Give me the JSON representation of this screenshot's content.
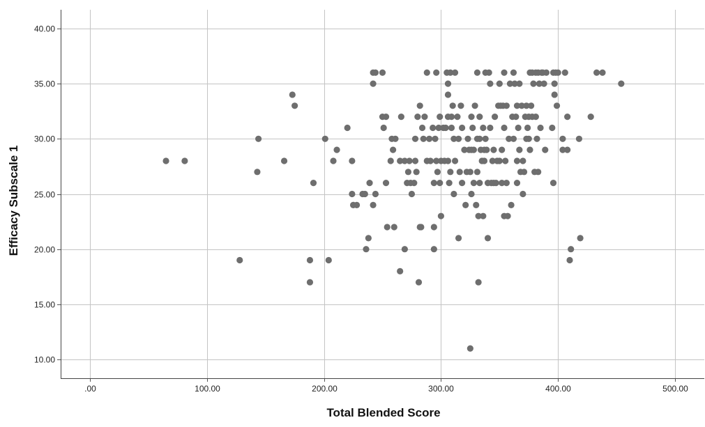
{
  "chart_data": {
    "type": "scatter",
    "title": "",
    "xlabel": "Total Blended Score",
    "ylabel": "Efficacy Subscale 1",
    "xlim": [
      -25,
      525
    ],
    "ylim": [
      8.3,
      41.7
    ],
    "x_ticks": [
      0,
      100,
      200,
      300,
      400,
      500
    ],
    "x_tick_labels": [
      ".00",
      "100.00",
      "200.00",
      "300.00",
      "400.00",
      "500.00"
    ],
    "y_ticks": [
      10,
      15,
      20,
      25,
      30,
      35,
      40
    ],
    "y_tick_labels": [
      "10.00",
      "15.00",
      "20.00",
      "25.00",
      "30.00",
      "35.00",
      "40.00"
    ],
    "grid": true,
    "marker_color": "#6e6e6e",
    "grid_color": "#c4c4c4",
    "points": [
      {
        "x": 65,
        "y": 28
      },
      {
        "x": 81,
        "y": 28
      },
      {
        "x": 128,
        "y": 19
      },
      {
        "x": 143,
        "y": 27
      },
      {
        "x": 144,
        "y": 30
      },
      {
        "x": 166,
        "y": 28
      },
      {
        "x": 173,
        "y": 34
      },
      {
        "x": 175,
        "y": 33
      },
      {
        "x": 188,
        "y": 19
      },
      {
        "x": 188,
        "y": 17
      },
      {
        "x": 191,
        "y": 26
      },
      {
        "x": 201,
        "y": 30
      },
      {
        "x": 204,
        "y": 19
      },
      {
        "x": 208,
        "y": 28
      },
      {
        "x": 211,
        "y": 29
      },
      {
        "x": 220,
        "y": 31
      },
      {
        "x": 224,
        "y": 28
      },
      {
        "x": 224,
        "y": 25
      },
      {
        "x": 225,
        "y": 24
      },
      {
        "x": 228,
        "y": 24
      },
      {
        "x": 233,
        "y": 25
      },
      {
        "x": 235,
        "y": 25
      },
      {
        "x": 236,
        "y": 20
      },
      {
        "x": 238,
        "y": 21
      },
      {
        "x": 239,
        "y": 26
      },
      {
        "x": 242,
        "y": 24
      },
      {
        "x": 244,
        "y": 25
      },
      {
        "x": 242,
        "y": 36
      },
      {
        "x": 244,
        "y": 36
      },
      {
        "x": 250,
        "y": 36
      },
      {
        "x": 242,
        "y": 35
      },
      {
        "x": 250,
        "y": 32
      },
      {
        "x": 253,
        "y": 32
      },
      {
        "x": 251,
        "y": 31
      },
      {
        "x": 253,
        "y": 26
      },
      {
        "x": 254,
        "y": 22
      },
      {
        "x": 257,
        "y": 28
      },
      {
        "x": 258,
        "y": 30
      },
      {
        "x": 261,
        "y": 30
      },
      {
        "x": 260,
        "y": 22
      },
      {
        "x": 259,
        "y": 29
      },
      {
        "x": 265,
        "y": 18
      },
      {
        "x": 266,
        "y": 32
      },
      {
        "x": 265,
        "y": 28
      },
      {
        "x": 269,
        "y": 28
      },
      {
        "x": 269,
        "y": 20
      },
      {
        "x": 271,
        "y": 26
      },
      {
        "x": 272,
        "y": 27
      },
      {
        "x": 273,
        "y": 28
      },
      {
        "x": 274,
        "y": 26
      },
      {
        "x": 275,
        "y": 25
      },
      {
        "x": 277,
        "y": 26
      },
      {
        "x": 278,
        "y": 28
      },
      {
        "x": 278,
        "y": 30
      },
      {
        "x": 279,
        "y": 27
      },
      {
        "x": 280,
        "y": 32
      },
      {
        "x": 281,
        "y": 17
      },
      {
        "x": 282,
        "y": 22
      },
      {
        "x": 283,
        "y": 22
      },
      {
        "x": 282,
        "y": 33
      },
      {
        "x": 284,
        "y": 31
      },
      {
        "x": 285,
        "y": 30
      },
      {
        "x": 286,
        "y": 32
      },
      {
        "x": 288,
        "y": 28
      },
      {
        "x": 288,
        "y": 36
      },
      {
        "x": 290,
        "y": 30
      },
      {
        "x": 291,
        "y": 28
      },
      {
        "x": 293,
        "y": 31
      },
      {
        "x": 294,
        "y": 26
      },
      {
        "x": 294,
        "y": 22
      },
      {
        "x": 294,
        "y": 20
      },
      {
        "x": 295,
        "y": 30
      },
      {
        "x": 296,
        "y": 36
      },
      {
        "x": 296,
        "y": 28
      },
      {
        "x": 297,
        "y": 27
      },
      {
        "x": 298,
        "y": 31
      },
      {
        "x": 299,
        "y": 26
      },
      {
        "x": 299,
        "y": 32
      },
      {
        "x": 300,
        "y": 28
      },
      {
        "x": 300,
        "y": 23
      },
      {
        "x": 302,
        "y": 31
      },
      {
        "x": 303,
        "y": 28
      },
      {
        "x": 304,
        "y": 31
      },
      {
        "x": 305,
        "y": 36
      },
      {
        "x": 306,
        "y": 35
      },
      {
        "x": 306,
        "y": 34
      },
      {
        "x": 306,
        "y": 32
      },
      {
        "x": 306,
        "y": 28
      },
      {
        "x": 307,
        "y": 26
      },
      {
        "x": 308,
        "y": 36
      },
      {
        "x": 308,
        "y": 27
      },
      {
        "x": 309,
        "y": 32
      },
      {
        "x": 309,
        "y": 31
      },
      {
        "x": 310,
        "y": 33
      },
      {
        "x": 311,
        "y": 30
      },
      {
        "x": 311,
        "y": 25
      },
      {
        "x": 312,
        "y": 36
      },
      {
        "x": 312,
        "y": 28
      },
      {
        "x": 314,
        "y": 32
      },
      {
        "x": 315,
        "y": 30
      },
      {
        "x": 315,
        "y": 21
      },
      {
        "x": 316,
        "y": 27
      },
      {
        "x": 317,
        "y": 33
      },
      {
        "x": 318,
        "y": 31
      },
      {
        "x": 318,
        "y": 26
      },
      {
        "x": 320,
        "y": 29
      },
      {
        "x": 321,
        "y": 24
      },
      {
        "x": 322,
        "y": 27
      },
      {
        "x": 323,
        "y": 30
      },
      {
        "x": 324,
        "y": 29
      },
      {
        "x": 325,
        "y": 27
      },
      {
        "x": 325,
        "y": 11
      },
      {
        "x": 326,
        "y": 25
      },
      {
        "x": 326,
        "y": 32
      },
      {
        "x": 326,
        "y": 29
      },
      {
        "x": 327,
        "y": 31
      },
      {
        "x": 328,
        "y": 29
      },
      {
        "x": 328,
        "y": 26
      },
      {
        "x": 329,
        "y": 33
      },
      {
        "x": 330,
        "y": 24
      },
      {
        "x": 331,
        "y": 36
      },
      {
        "x": 331,
        "y": 27
      },
      {
        "x": 331,
        "y": 30
      },
      {
        "x": 332,
        "y": 17
      },
      {
        "x": 332,
        "y": 23
      },
      {
        "x": 333,
        "y": 32
      },
      {
        "x": 333,
        "y": 26
      },
      {
        "x": 333,
        "y": 30
      },
      {
        "x": 334,
        "y": 29
      },
      {
        "x": 335,
        "y": 28
      },
      {
        "x": 336,
        "y": 31
      },
      {
        "x": 336,
        "y": 23
      },
      {
        "x": 337,
        "y": 28
      },
      {
        "x": 337,
        "y": 29
      },
      {
        "x": 338,
        "y": 36
      },
      {
        "x": 338,
        "y": 30
      },
      {
        "x": 339,
        "y": 29
      },
      {
        "x": 340,
        "y": 26
      },
      {
        "x": 340,
        "y": 21
      },
      {
        "x": 341,
        "y": 36
      },
      {
        "x": 342,
        "y": 31
      },
      {
        "x": 342,
        "y": 35
      },
      {
        "x": 343,
        "y": 26
      },
      {
        "x": 344,
        "y": 28
      },
      {
        "x": 345,
        "y": 26
      },
      {
        "x": 345,
        "y": 29
      },
      {
        "x": 346,
        "y": 32
      },
      {
        "x": 347,
        "y": 26
      },
      {
        "x": 348,
        "y": 28
      },
      {
        "x": 349,
        "y": 33
      },
      {
        "x": 350,
        "y": 28
      },
      {
        "x": 350,
        "y": 35
      },
      {
        "x": 351,
        "y": 33
      },
      {
        "x": 352,
        "y": 26
      },
      {
        "x": 352,
        "y": 29
      },
      {
        "x": 353,
        "y": 33
      },
      {
        "x": 354,
        "y": 23
      },
      {
        "x": 354,
        "y": 31
      },
      {
        "x": 354,
        "y": 36
      },
      {
        "x": 355,
        "y": 28
      },
      {
        "x": 356,
        "y": 26
      },
      {
        "x": 356,
        "y": 33
      },
      {
        "x": 357,
        "y": 23
      },
      {
        "x": 358,
        "y": 30
      },
      {
        "x": 359,
        "y": 35
      },
      {
        "x": 360,
        "y": 24
      },
      {
        "x": 361,
        "y": 32
      },
      {
        "x": 362,
        "y": 36
      },
      {
        "x": 362,
        "y": 30
      },
      {
        "x": 363,
        "y": 35
      },
      {
        "x": 364,
        "y": 32
      },
      {
        "x": 365,
        "y": 28
      },
      {
        "x": 365,
        "y": 26
      },
      {
        "x": 365,
        "y": 33
      },
      {
        "x": 366,
        "y": 31
      },
      {
        "x": 367,
        "y": 29
      },
      {
        "x": 367,
        "y": 35
      },
      {
        "x": 368,
        "y": 27
      },
      {
        "x": 369,
        "y": 33
      },
      {
        "x": 370,
        "y": 28
      },
      {
        "x": 370,
        "y": 25
      },
      {
        "x": 371,
        "y": 27
      },
      {
        "x": 372,
        "y": 32
      },
      {
        "x": 373,
        "y": 33
      },
      {
        "x": 373,
        "y": 30
      },
      {
        "x": 374,
        "y": 31
      },
      {
        "x": 375,
        "y": 32
      },
      {
        "x": 375,
        "y": 30
      },
      {
        "x": 376,
        "y": 36
      },
      {
        "x": 376,
        "y": 29
      },
      {
        "x": 377,
        "y": 33
      },
      {
        "x": 378,
        "y": 36
      },
      {
        "x": 378,
        "y": 32
      },
      {
        "x": 379,
        "y": 35
      },
      {
        "x": 380,
        "y": 27
      },
      {
        "x": 381,
        "y": 36
      },
      {
        "x": 381,
        "y": 32
      },
      {
        "x": 382,
        "y": 30
      },
      {
        "x": 383,
        "y": 36
      },
      {
        "x": 383,
        "y": 27
      },
      {
        "x": 384,
        "y": 35
      },
      {
        "x": 385,
        "y": 31
      },
      {
        "x": 386,
        "y": 36
      },
      {
        "x": 387,
        "y": 36
      },
      {
        "x": 388,
        "y": 35
      },
      {
        "x": 389,
        "y": 29
      },
      {
        "x": 390,
        "y": 36
      },
      {
        "x": 395,
        "y": 31
      },
      {
        "x": 396,
        "y": 36
      },
      {
        "x": 396,
        "y": 26
      },
      {
        "x": 397,
        "y": 34
      },
      {
        "x": 397,
        "y": 35
      },
      {
        "x": 398,
        "y": 36
      },
      {
        "x": 399,
        "y": 33
      },
      {
        "x": 400,
        "y": 36
      },
      {
        "x": 404,
        "y": 29
      },
      {
        "x": 404,
        "y": 30
      },
      {
        "x": 406,
        "y": 36
      },
      {
        "x": 408,
        "y": 29
      },
      {
        "x": 408,
        "y": 32
      },
      {
        "x": 410,
        "y": 19
      },
      {
        "x": 411,
        "y": 20
      },
      {
        "x": 418,
        "y": 30
      },
      {
        "x": 419,
        "y": 21
      },
      {
        "x": 428,
        "y": 32
      },
      {
        "x": 433,
        "y": 36
      },
      {
        "x": 438,
        "y": 36
      },
      {
        "x": 454,
        "y": 35
      }
    ]
  }
}
